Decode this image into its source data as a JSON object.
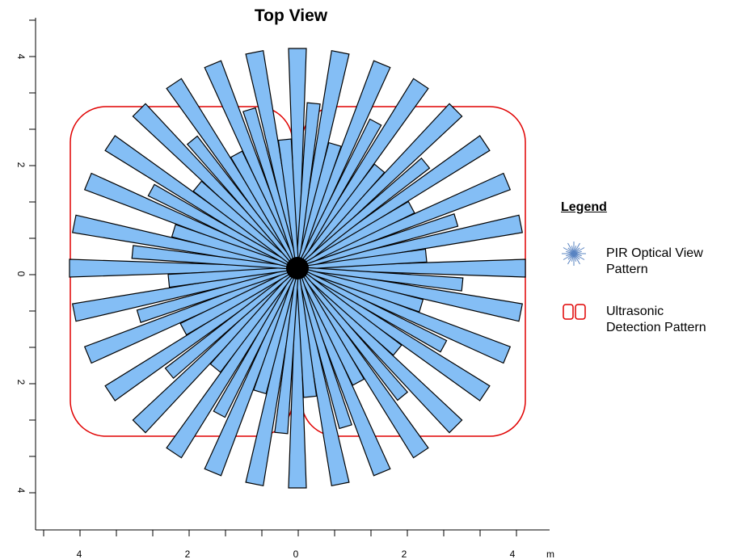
{
  "title": "Top View",
  "units_label": "m",
  "axes": {
    "x_ticks": [
      "4",
      "2",
      "0",
      "2",
      "4"
    ],
    "y_ticks": [
      "4",
      "2",
      "0",
      "2",
      "4"
    ]
  },
  "legend": {
    "heading": "Legend",
    "items": [
      {
        "label_line1": "PIR Optical View",
        "label_line2": "Pattern",
        "icon": "pir-starburst-icon"
      },
      {
        "label_line1": "Ultrasonic",
        "label_line2": "Detection Pattern",
        "icon": "ultrasonic-double-rect-icon"
      }
    ]
  },
  "colors": {
    "pir_fill": "#84bef5",
    "pir_stroke": "#000000",
    "ultrasonic_stroke": "#e00000",
    "pir_icon": "#5a84c2"
  }
}
